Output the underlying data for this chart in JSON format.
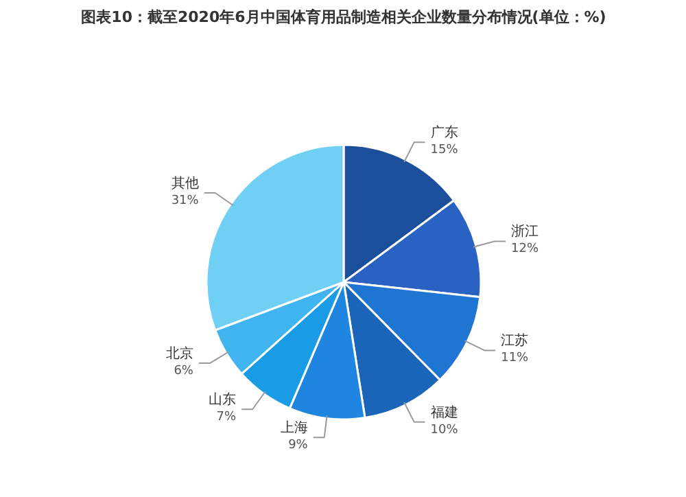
{
  "chart_data": {
    "type": "pie",
    "title": "图表10：截至2020年6月中国体育用品制造相关企业数量分布情况(单位：%)",
    "categories": [
      "广东",
      "浙江",
      "江苏",
      "福建",
      "上海",
      "山东",
      "北京",
      "其他"
    ],
    "values": [
      15,
      12,
      11,
      10,
      9,
      7,
      6,
      31
    ],
    "value_labels": [
      "15%",
      "12%",
      "11%",
      "10%",
      "9%",
      "7%",
      "6%",
      "31%"
    ],
    "colors": [
      "#1b4f9c",
      "#2a62c4",
      "#1f76d2",
      "#1a65b8",
      "#1e86e0",
      "#1a9be6",
      "#3fb4ef",
      "#6fcff4"
    ]
  }
}
